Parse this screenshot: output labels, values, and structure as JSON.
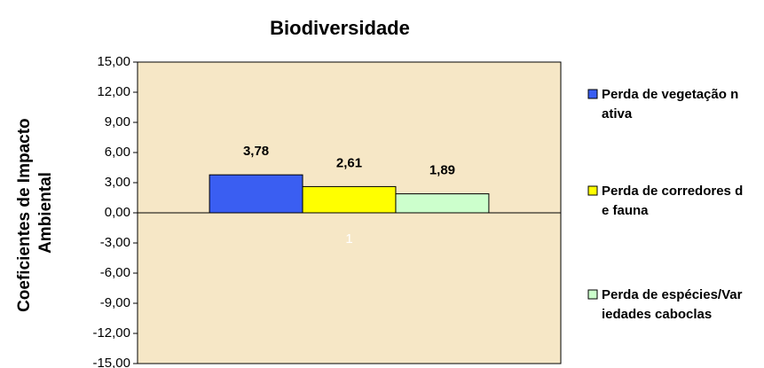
{
  "chart_data": {
    "type": "bar",
    "title": "Biodiversidade",
    "y_label": [
      "Coeficientes de Impacto",
      "Ambiental"
    ],
    "categories": [
      "1"
    ],
    "series": [
      {
        "name": "Perda de vegetação nativa",
        "color": "#3a5ef2",
        "values": [
          3.78
        ],
        "value_labels": [
          "3,78"
        ]
      },
      {
        "name": "Perda de corredores de fauna",
        "color": "#ffff00",
        "values": [
          2.61
        ],
        "value_labels": [
          "2,61"
        ]
      },
      {
        "name": "Perda de espécies/Variedades caboclas",
        "color": "#ccffcc",
        "values": [
          1.89
        ],
        "value_labels": [
          "1,89"
        ]
      }
    ],
    "ylim": [
      -15,
      15
    ],
    "yticks": [
      {
        "value": -15,
        "label": "-15,00"
      },
      {
        "value": -12,
        "label": "-12,00"
      },
      {
        "value": -9,
        "label": "-9,00"
      },
      {
        "value": -6,
        "label": "-6,00"
      },
      {
        "value": -3,
        "label": "-3,00"
      },
      {
        "value": 0,
        "label": "0,00"
      },
      {
        "value": 3,
        "label": "3,00"
      },
      {
        "value": 6,
        "label": "6,00"
      },
      {
        "value": 9,
        "label": "9,00"
      },
      {
        "value": 12,
        "label": "12,00"
      },
      {
        "value": 15,
        "label": "15,00"
      }
    ],
    "legend": "right"
  }
}
